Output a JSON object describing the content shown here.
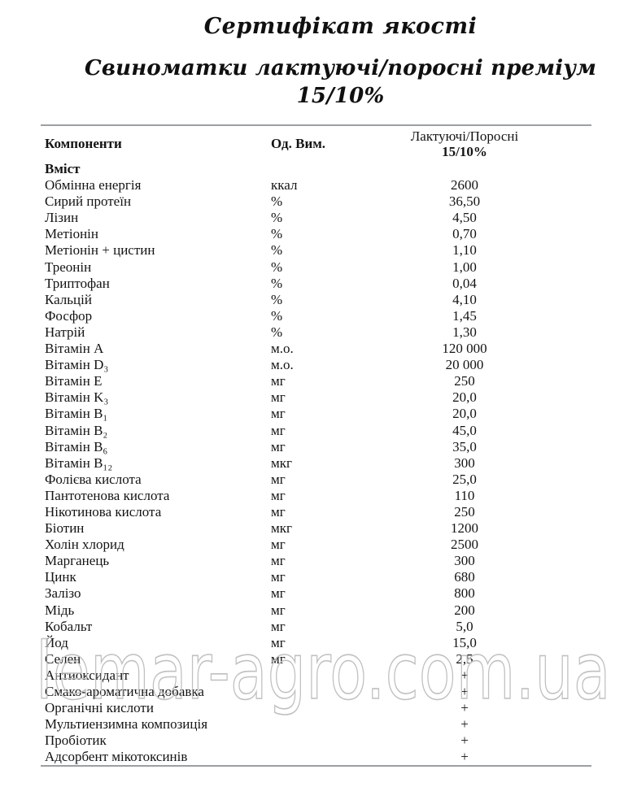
{
  "page": {
    "title": "Сертифікат якості",
    "subtitle": "Свиноматки лактуючі/поросні преміум 15/10%"
  },
  "table": {
    "header": {
      "components": "Компоненти",
      "unit": "Од. Вим.",
      "value_line1": "Лактуючі/Поросні",
      "value_line2": "15/10%"
    },
    "section_label": "Вміст",
    "rows": [
      {
        "name": "Обмінна енергія",
        "unit": "ккал",
        "value": "2600"
      },
      {
        "name": "Сирий протеїн",
        "unit": "%",
        "value": "36,50"
      },
      {
        "name": "Лізин",
        "unit": "%",
        "value": "4,50"
      },
      {
        "name": "Метіонін",
        "unit": "%",
        "value": "0,70"
      },
      {
        "name": "Метіонін + цистин",
        "unit": "%",
        "value": "1,10"
      },
      {
        "name": "Треонін",
        "unit": "%",
        "value": "1,00"
      },
      {
        "name": "Триптофан",
        "unit": "%",
        "value": "0,04"
      },
      {
        "name": "Кальцій",
        "unit": "%",
        "value": "4,10"
      },
      {
        "name": "Фосфор",
        "unit": "%",
        "value": "1,45"
      },
      {
        "name": "Натрій",
        "unit": "%",
        "value": "1,30"
      },
      {
        "name": "Вітамін A",
        "unit": "м.о.",
        "value": "120 000"
      },
      {
        "name": "Вітамін D₃",
        "unit": "м.о.",
        "value": "20 000"
      },
      {
        "name": "Вітамін E",
        "unit": "мг",
        "value": "250"
      },
      {
        "name": "Вітамін K₃",
        "unit": "мг",
        "value": "20,0"
      },
      {
        "name": "Вітамін B₁",
        "unit": "мг",
        "value": "20,0"
      },
      {
        "name": "Вітамін B₂",
        "unit": "мг",
        "value": "45,0"
      },
      {
        "name": "Вітамін B₆",
        "unit": "мг",
        "value": "35,0"
      },
      {
        "name": "Вітамін B₁₂",
        "unit": "мкг",
        "value": "300"
      },
      {
        "name": "Фолієва кислота",
        "unit": "мг",
        "value": "25,0"
      },
      {
        "name": "Пантотенова кислота",
        "unit": "мг",
        "value": "110"
      },
      {
        "name": "Нікотинова кислота",
        "unit": "мг",
        "value": "250"
      },
      {
        "name": "Біотин",
        "unit": "мкг",
        "value": "1200"
      },
      {
        "name": "Холін хлорид",
        "unit": "мг",
        "value": "2500"
      },
      {
        "name": "Марганець",
        "unit": "мг",
        "value": "300"
      },
      {
        "name": "Цинк",
        "unit": "мг",
        "value": "680"
      },
      {
        "name": "Залізо",
        "unit": "мг",
        "value": "800"
      },
      {
        "name": "Мідь",
        "unit": "мг",
        "value": "200"
      },
      {
        "name": "Кобальт",
        "unit": "мг",
        "value": "5,0"
      },
      {
        "name": "Йод",
        "unit": "мг",
        "value": "15,0"
      },
      {
        "name": "Селен",
        "unit": "мг",
        "value": "2,5"
      },
      {
        "name": "Антиоксидант",
        "unit": "",
        "value": "+"
      },
      {
        "name": "Смако-ароматична добавка",
        "unit": "",
        "value": "+"
      },
      {
        "name": "Органічні кислоти",
        "unit": "",
        "value": "+"
      },
      {
        "name": "Мультиензимна композиція",
        "unit": "",
        "value": "+"
      },
      {
        "name": "Пробіотик",
        "unit": "",
        "value": "+"
      },
      {
        "name": "Адсорбент мікотоксинів",
        "unit": "",
        "value": "+"
      }
    ]
  },
  "watermark": {
    "text": "lemar-agro.com.ua"
  },
  "colors": {
    "text": "#141414",
    "rule": "#9aa0a3",
    "watermark_stroke": "#c0c0c0"
  }
}
